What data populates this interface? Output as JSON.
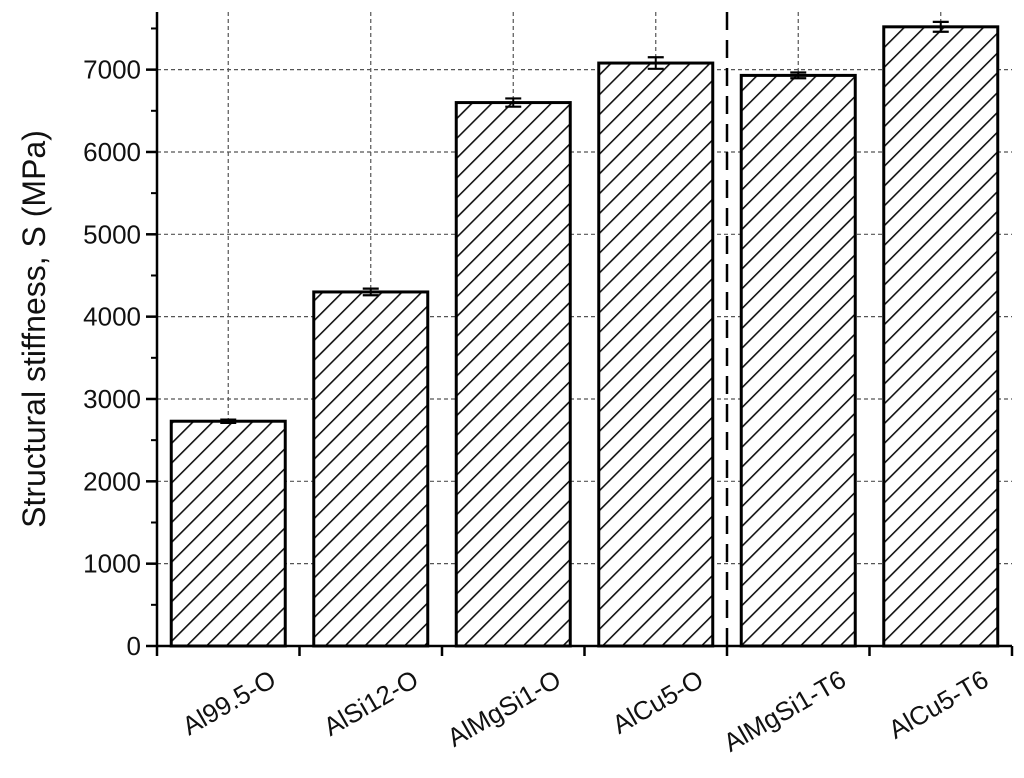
{
  "chart_data": {
    "type": "bar",
    "title": "",
    "xlabel": "",
    "ylabel": "Structural stiffness, S (MPa)",
    "categories": [
      "Al99.5-O",
      "AlSi12-O",
      "AlMgSi1-O",
      "AlCu5-O",
      "AlMgSi1-T6",
      "AlCu5-T6"
    ],
    "values": [
      2730,
      4300,
      6600,
      7080,
      6930,
      7520
    ],
    "errors": [
      20,
      40,
      50,
      70,
      35,
      60
    ],
    "ylim": [
      0,
      7700
    ],
    "yticks": [
      0,
      1000,
      2000,
      3000,
      4000,
      5000,
      6000,
      7000
    ],
    "ytick_labels": [
      "0",
      "1000",
      "2000",
      "3000",
      "4000",
      "5000",
      "6000",
      "7000"
    ],
    "grid": true,
    "bar_pattern": "diagonal-hatch",
    "divider": "dashed vertical line between AlCu5-O and AlMgSi1-T6",
    "colors": {
      "bar_fill": "#ffffff",
      "hatch": "#111111",
      "edge": "#000000",
      "grid": "#555555"
    }
  }
}
